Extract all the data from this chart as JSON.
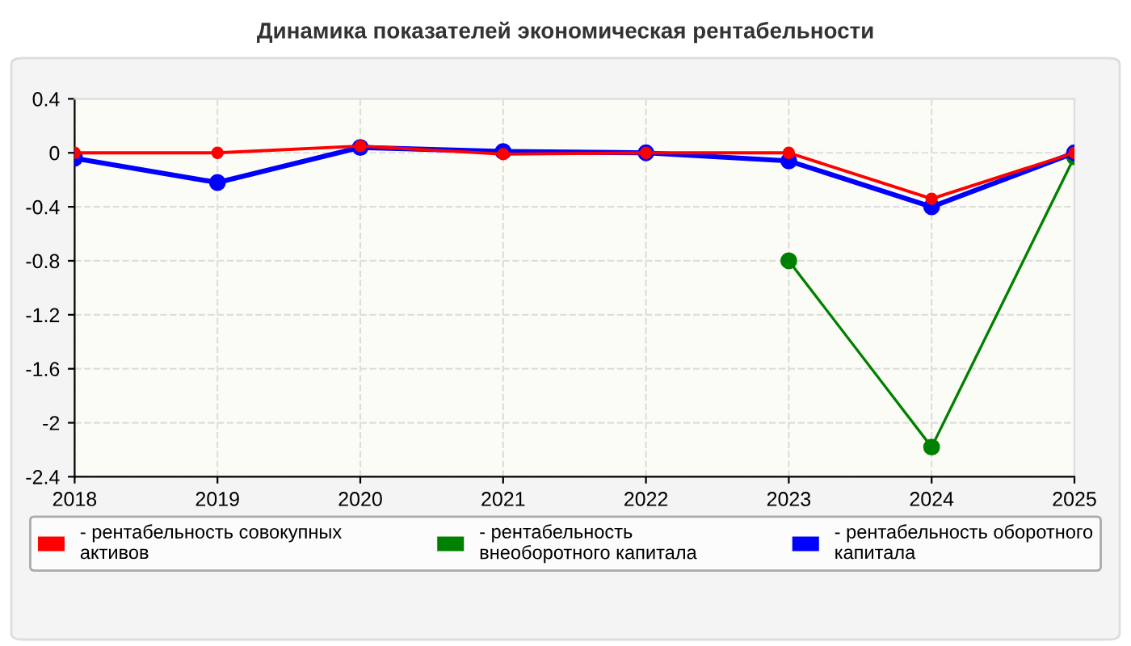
{
  "chart_data": {
    "type": "line",
    "title": "Динамика показателей экономическая рентабельности",
    "x": [
      2018,
      2019,
      2020,
      2021,
      2022,
      2023,
      2024,
      2025
    ],
    "series": [
      {
        "name": "- рентабельность совокупных\nактивов",
        "color": "#ff0000",
        "values": [
          0,
          0,
          0.05,
          -0.01,
          0,
          0,
          -0.34,
          0
        ]
      },
      {
        "name": "- рентабельность\nвнеоборотного капитала",
        "color": "#008000",
        "values": [
          null,
          null,
          null,
          null,
          null,
          -0.8,
          -2.18,
          -0.03
        ]
      },
      {
        "name": "- рентабельность оборотного\nкапитала",
        "color": "#0000ff",
        "values": [
          -0.04,
          -0.22,
          0.04,
          0.01,
          0,
          -0.06,
          -0.4,
          0
        ]
      }
    ],
    "xlim": [
      2018,
      2025
    ],
    "xticks": [
      2018,
      2019,
      2020,
      2021,
      2022,
      2023,
      2024,
      2025
    ],
    "ylim": [
      -2.4,
      0.4
    ],
    "yticks": [
      0.4,
      0,
      -0.4,
      -0.8,
      -1.2,
      -1.6,
      -2,
      -2.4
    ],
    "grid": true,
    "legend": "bottom",
    "marker": "circle",
    "line_style": "solid"
  }
}
